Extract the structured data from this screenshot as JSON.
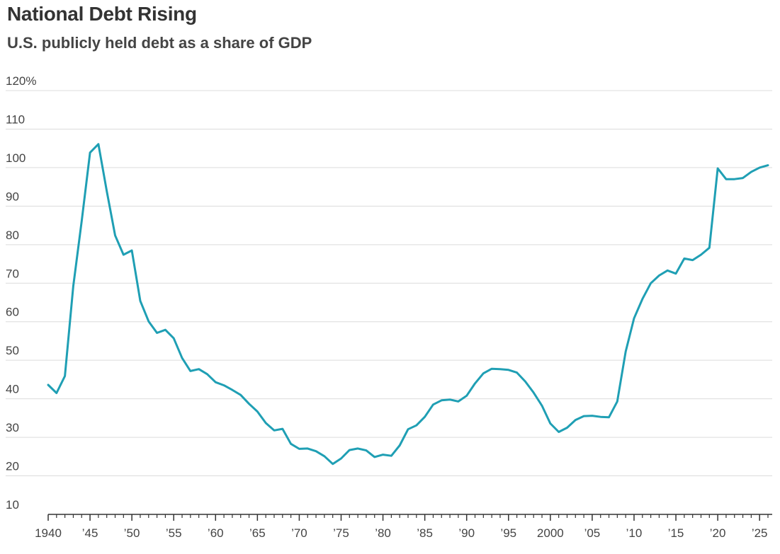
{
  "chart_data": {
    "type": "line",
    "title": "National Debt Rising",
    "subtitle": "U.S. publicly held debt as a share of GDP",
    "xlabel": "",
    "ylabel": "",
    "ylim": [
      10,
      120
    ],
    "xlim": [
      1940,
      2026
    ],
    "grid": true,
    "y_ticks": [
      {
        "value": 120,
        "label": "120%"
      },
      {
        "value": 110,
        "label": "110"
      },
      {
        "value": 100,
        "label": "100"
      },
      {
        "value": 90,
        "label": "90"
      },
      {
        "value": 80,
        "label": "80"
      },
      {
        "value": 70,
        "label": "70"
      },
      {
        "value": 60,
        "label": "60"
      },
      {
        "value": 50,
        "label": "50"
      },
      {
        "value": 40,
        "label": "40"
      },
      {
        "value": 30,
        "label": "30"
      },
      {
        "value": 20,
        "label": "20"
      },
      {
        "value": 10,
        "label": "10"
      }
    ],
    "x_ticks": [
      {
        "value": 1940,
        "label": "1940"
      },
      {
        "value": 1945,
        "label": "’45"
      },
      {
        "value": 1950,
        "label": "’50"
      },
      {
        "value": 1955,
        "label": "’55"
      },
      {
        "value": 1960,
        "label": "’60"
      },
      {
        "value": 1965,
        "label": "’65"
      },
      {
        "value": 1970,
        "label": "’70"
      },
      {
        "value": 1975,
        "label": "’75"
      },
      {
        "value": 1980,
        "label": "’80"
      },
      {
        "value": 1985,
        "label": "’85"
      },
      {
        "value": 1990,
        "label": "’90"
      },
      {
        "value": 1995,
        "label": "’95"
      },
      {
        "value": 2000,
        "label": "2000"
      },
      {
        "value": 2005,
        "label": "’05"
      },
      {
        "value": 2010,
        "label": "’10"
      },
      {
        "value": 2015,
        "label": "’15"
      },
      {
        "value": 2020,
        "label": "’20"
      },
      {
        "value": 2025,
        "label": "’25"
      }
    ],
    "color": "#1f9fb4",
    "series": [
      {
        "x": [
          1940,
          1941,
          1942,
          1943,
          1944,
          1945,
          1946,
          1947,
          1948,
          1949,
          1950,
          1951,
          1952,
          1953,
          1954,
          1955,
          1956,
          1957,
          1958,
          1959,
          1960,
          1961,
          1962,
          1963,
          1964,
          1965,
          1966,
          1967,
          1968,
          1969,
          1970,
          1971,
          1972,
          1973,
          1974,
          1975,
          1976,
          1977,
          1978,
          1979,
          1980,
          1981,
          1982,
          1983,
          1984,
          1985,
          1986,
          1987,
          1988,
          1989,
          1990,
          1991,
          1992,
          1993,
          1994,
          1995,
          1996,
          1997,
          1998,
          1999,
          2000,
          2001,
          2002,
          2003,
          2004,
          2005,
          2006,
          2007,
          2008,
          2009,
          2010,
          2011,
          2012,
          2013,
          2014,
          2015,
          2016,
          2017,
          2018,
          2019,
          2020,
          2021,
          2022,
          2023,
          2024,
          2025,
          2026
        ],
        "values": [
          43.6,
          41.5,
          45.9,
          69.2,
          86.1,
          103.9,
          106.1,
          93.9,
          82.4,
          77.4,
          78.5,
          65.4,
          60.1,
          57.1,
          57.9,
          55.7,
          50.6,
          47.2,
          47.7,
          46.4,
          44.3,
          43.5,
          42.3,
          41.0,
          38.7,
          36.7,
          33.7,
          31.8,
          32.2,
          28.3,
          27.0,
          27.1,
          26.4,
          25.1,
          23.1,
          24.5,
          26.7,
          27.1,
          26.6,
          24.9,
          25.5,
          25.2,
          27.9,
          32.1,
          33.1,
          35.3,
          38.5,
          39.6,
          39.8,
          39.3,
          40.8,
          44.0,
          46.6,
          47.8,
          47.7,
          47.5,
          46.8,
          44.5,
          41.6,
          38.2,
          33.6,
          31.4,
          32.5,
          34.5,
          35.5,
          35.6,
          35.3,
          35.2,
          39.3,
          52.3,
          60.9,
          65.9,
          70.0,
          72.0,
          73.3,
          72.5,
          76.4,
          76.0,
          77.4,
          79.2,
          99.8,
          97.0,
          97.0,
          97.3,
          98.9,
          100.0,
          100.6
        ]
      }
    ]
  }
}
